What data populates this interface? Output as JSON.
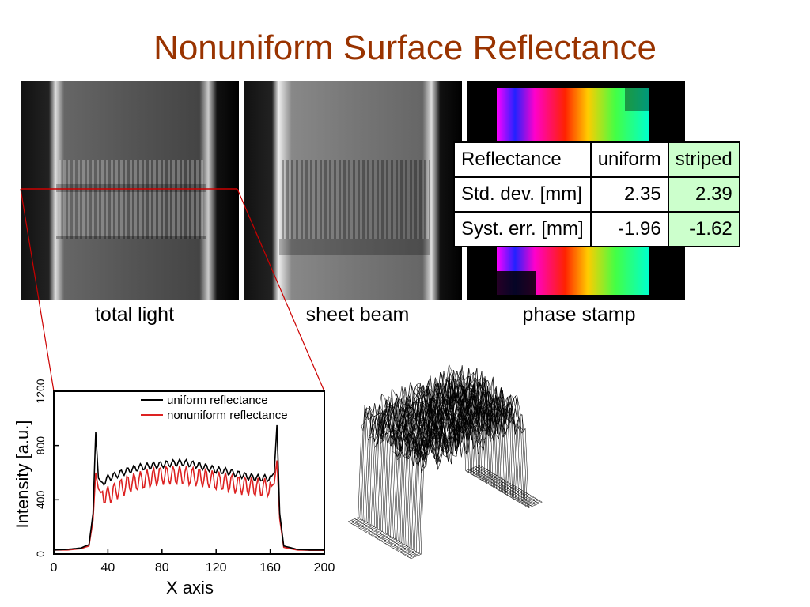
{
  "slide": {
    "title": "Nonuniform Surface Reflectance"
  },
  "images": [
    {
      "caption": "total light"
    },
    {
      "caption": "sheet beam"
    },
    {
      "caption": "phase stamp"
    }
  ],
  "table": {
    "headers": [
      "Reflectance",
      "uniform",
      "striped"
    ],
    "rows": [
      [
        "Std. dev. [mm]",
        "2.35",
        "2.39"
      ],
      [
        "Syst. err. [mm]",
        "-1.96",
        "-1.62"
      ]
    ],
    "highlight_color": "#ccffcc"
  },
  "colors": {
    "title": "#993300",
    "connector": "#cc0000",
    "uniform_series": "#000000",
    "nonuniform_series": "#dd2222"
  },
  "chart_data": {
    "type": "line",
    "xlabel": "X axis",
    "ylabel": "Intensity [a.u.]",
    "xlim": [
      0,
      200
    ],
    "ylim": [
      0,
      1200
    ],
    "x_ticks": [
      "0",
      "40",
      "80",
      "120",
      "160",
      "200"
    ],
    "y_ticks": [
      "0",
      "400",
      "800",
      "1200"
    ],
    "legend_position": "top-right",
    "series": [
      {
        "name": "uniform reflectance",
        "color": "#000000",
        "points": [
          [
            0,
            30
          ],
          [
            10,
            35
          ],
          [
            20,
            45
          ],
          [
            26,
            70
          ],
          [
            29,
            300
          ],
          [
            31,
            900
          ],
          [
            33,
            560
          ],
          [
            36,
            520
          ],
          [
            40,
            560
          ],
          [
            48,
            590
          ],
          [
            56,
            620
          ],
          [
            64,
            640
          ],
          [
            72,
            650
          ],
          [
            80,
            660
          ],
          [
            88,
            670
          ],
          [
            96,
            675
          ],
          [
            104,
            660
          ],
          [
            112,
            640
          ],
          [
            120,
            620
          ],
          [
            128,
            610
          ],
          [
            136,
            590
          ],
          [
            144,
            570
          ],
          [
            152,
            560
          ],
          [
            160,
            560
          ],
          [
            163,
            600
          ],
          [
            165,
            950
          ],
          [
            167,
            300
          ],
          [
            170,
            60
          ],
          [
            180,
            35
          ],
          [
            190,
            30
          ],
          [
            200,
            30
          ]
        ]
      },
      {
        "name": "nonuniform reflectance",
        "color": "#dd2222",
        "points": [
          [
            0,
            30
          ],
          [
            10,
            30
          ],
          [
            20,
            40
          ],
          [
            26,
            60
          ],
          [
            29,
            250
          ],
          [
            31,
            600
          ],
          [
            33,
            480
          ],
          [
            36,
            440
          ],
          [
            40,
            430
          ],
          [
            48,
            480
          ],
          [
            56,
            520
          ],
          [
            64,
            540
          ],
          [
            72,
            560
          ],
          [
            80,
            580
          ],
          [
            88,
            580
          ],
          [
            96,
            580
          ],
          [
            104,
            570
          ],
          [
            112,
            560
          ],
          [
            120,
            540
          ],
          [
            128,
            530
          ],
          [
            136,
            510
          ],
          [
            144,
            500
          ],
          [
            152,
            490
          ],
          [
            160,
            490
          ],
          [
            163,
            520
          ],
          [
            165,
            690
          ],
          [
            167,
            260
          ],
          [
            170,
            50
          ],
          [
            180,
            30
          ],
          [
            190,
            28
          ],
          [
            200,
            28
          ]
        ]
      }
    ]
  }
}
